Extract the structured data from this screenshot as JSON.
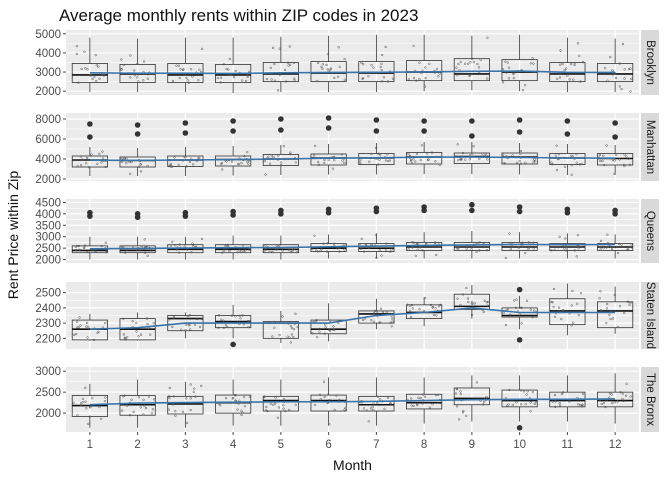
{
  "chart_data": {
    "type": "box",
    "title": "Average monthly rents within ZIP codes in 2023",
    "xlabel": "Month",
    "ylabel": "Rent Price within Zip",
    "x_categories": [
      "1",
      "2",
      "3",
      "4",
      "5",
      "6",
      "7",
      "8",
      "9",
      "10",
      "11",
      "12"
    ],
    "overlays": [
      "jittered points per ZIP code",
      "mean trend line (blue)"
    ],
    "colors": {
      "panel_bg": "#ebebeb",
      "grid": "#ffffff",
      "strip_bg": "#d9d9d9",
      "box": "#333333",
      "trend": "#3a73a8",
      "points": "#555555"
    },
    "facets": [
      {
        "strip": "Brooklyn",
        "yticks": [
          2000,
          3000,
          4000,
          5000
        ],
        "ylim": [
          1800,
          5200
        ],
        "boxes": [
          {
            "q1": 2450,
            "median": 2850,
            "q3": 3450,
            "low": 1950,
            "high": 4800
          },
          {
            "q1": 2450,
            "median": 2900,
            "q3": 3400,
            "low": 1950,
            "high": 4750
          },
          {
            "q1": 2450,
            "median": 2850,
            "q3": 3450,
            "low": 1950,
            "high": 4800
          },
          {
            "q1": 2450,
            "median": 2850,
            "q3": 3400,
            "low": 1900,
            "high": 4800
          },
          {
            "q1": 2500,
            "median": 2900,
            "q3": 3500,
            "low": 1950,
            "high": 4850
          },
          {
            "q1": 2500,
            "median": 2950,
            "q3": 3550,
            "low": 1950,
            "high": 4900
          },
          {
            "q1": 2500,
            "median": 2950,
            "q3": 3550,
            "low": 1950,
            "high": 4950
          },
          {
            "q1": 2550,
            "median": 3000,
            "q3": 3600,
            "low": 2000,
            "high": 4950
          },
          {
            "q1": 2550,
            "median": 2900,
            "q3": 3700,
            "low": 2050,
            "high": 4900
          },
          {
            "q1": 2550,
            "median": 3000,
            "q3": 3650,
            "low": 2000,
            "high": 4950
          },
          {
            "q1": 2500,
            "median": 2900,
            "q3": 3500,
            "low": 1950,
            "high": 4800
          },
          {
            "q1": 2500,
            "median": 2900,
            "q3": 3450,
            "low": 1950,
            "high": 4750
          }
        ],
        "outliers": [
          [],
          [],
          [],
          [],
          [],
          [],
          [],
          [],
          [],
          [],
          [],
          []
        ],
        "trend": [
          2960,
          2940,
          2940,
          2930,
          2960,
          2980,
          2990,
          3010,
          3040,
          3050,
          2990,
          2980
        ]
      },
      {
        "strip": "Manhattan",
        "yticks": [
          2000,
          4000,
          6000,
          8000
        ],
        "ylim": [
          1800,
          8600
        ],
        "boxes": [
          {
            "q1": 3200,
            "median": 3900,
            "q3": 4300,
            "low": 2300,
            "high": 5200
          },
          {
            "q1": 3200,
            "median": 3850,
            "q3": 4200,
            "low": 2300,
            "high": 5100
          },
          {
            "q1": 3250,
            "median": 3900,
            "q3": 4300,
            "low": 2300,
            "high": 5200
          },
          {
            "q1": 3300,
            "median": 3950,
            "q3": 4300,
            "low": 2350,
            "high": 5300
          },
          {
            "q1": 3350,
            "median": 4000,
            "q3": 4450,
            "low": 2400,
            "high": 5400
          },
          {
            "q1": 3400,
            "median": 4100,
            "q3": 4500,
            "low": 2450,
            "high": 5500
          },
          {
            "q1": 3450,
            "median": 4100,
            "q3": 4550,
            "low": 2450,
            "high": 5600
          },
          {
            "q1": 3500,
            "median": 4200,
            "q3": 4650,
            "low": 2500,
            "high": 5700
          },
          {
            "q1": 3550,
            "median": 4250,
            "q3": 4600,
            "low": 2500,
            "high": 5700
          },
          {
            "q1": 3500,
            "median": 4200,
            "q3": 4600,
            "low": 2450,
            "high": 5600
          },
          {
            "q1": 3450,
            "median": 4100,
            "q3": 4550,
            "low": 2400,
            "high": 5500
          },
          {
            "q1": 3400,
            "median": 4050,
            "q3": 4550,
            "low": 2400,
            "high": 5400
          }
        ],
        "outliers": [
          [
            6200,
            7500
          ],
          [
            6500,
            7400
          ],
          [
            6600,
            7600
          ],
          [
            6800,
            7800
          ],
          [
            6900,
            8000
          ],
          [
            7100,
            8100
          ],
          [
            6800,
            7900
          ],
          [
            6800,
            7800
          ],
          [
            6300,
            7800
          ],
          [
            6700,
            7900
          ],
          [
            6500,
            7800
          ],
          [
            6200,
            7600
          ]
        ],
        "trend": [
          3880,
          3870,
          3900,
          3950,
          4000,
          4080,
          4120,
          4180,
          4200,
          4150,
          4100,
          4080
        ]
      },
      {
        "strip": "Queens",
        "yticks": [
          2000,
          2500,
          3000,
          3500,
          4000,
          4500
        ],
        "ylim": [
          1850,
          4650
        ],
        "boxes": [
          {
            "q1": 2300,
            "median": 2400,
            "q3": 2600,
            "low": 2000,
            "high": 3000
          },
          {
            "q1": 2300,
            "median": 2400,
            "q3": 2600,
            "low": 2000,
            "high": 3000
          },
          {
            "q1": 2300,
            "median": 2450,
            "q3": 2650,
            "low": 2000,
            "high": 3000
          },
          {
            "q1": 2300,
            "median": 2450,
            "q3": 2650,
            "low": 2000,
            "high": 3050
          },
          {
            "q1": 2300,
            "median": 2450,
            "q3": 2650,
            "low": 2000,
            "high": 3050
          },
          {
            "q1": 2350,
            "median": 2500,
            "q3": 2700,
            "low": 2050,
            "high": 3100
          },
          {
            "q1": 2350,
            "median": 2500,
            "q3": 2700,
            "low": 2050,
            "high": 3150
          },
          {
            "q1": 2400,
            "median": 2550,
            "q3": 2750,
            "low": 2050,
            "high": 3200
          },
          {
            "q1": 2400,
            "median": 2550,
            "q3": 2750,
            "low": 2050,
            "high": 3250
          },
          {
            "q1": 2400,
            "median": 2550,
            "q3": 2750,
            "low": 2050,
            "high": 3200
          },
          {
            "q1": 2400,
            "median": 2550,
            "q3": 2700,
            "low": 2050,
            "high": 3150
          },
          {
            "q1": 2400,
            "median": 2550,
            "q3": 2700,
            "low": 2050,
            "high": 3100
          }
        ],
        "outliers": [
          [
            3900,
            4050
          ],
          [
            3850,
            4000
          ],
          [
            3900,
            4050
          ],
          [
            3950,
            4100
          ],
          [
            4000,
            4150
          ],
          [
            4050,
            4200
          ],
          [
            4100,
            4250
          ],
          [
            4150,
            4300
          ],
          [
            4150,
            4400
          ],
          [
            4100,
            4300
          ],
          [
            4050,
            4200
          ],
          [
            4000,
            4150
          ]
        ],
        "trend": [
          2470,
          2490,
          2500,
          2520,
          2530,
          2560,
          2590,
          2620,
          2640,
          2660,
          2650,
          2660
        ]
      },
      {
        "strip": "Staten Island",
        "yticks": [
          2200,
          2300,
          2400,
          2500
        ],
        "ylim": [
          2130,
          2570
        ],
        "boxes": [
          {
            "q1": 2190,
            "median": 2260,
            "q3": 2320,
            "low": 2185,
            "high": 2360
          },
          {
            "q1": 2190,
            "median": 2260,
            "q3": 2330,
            "low": 2185,
            "high": 2370
          },
          {
            "q1": 2250,
            "median": 2330,
            "q3": 2350,
            "low": 2200,
            "high": 2370
          },
          {
            "q1": 2270,
            "median": 2310,
            "q3": 2350,
            "low": 2200,
            "high": 2420
          },
          {
            "q1": 2200,
            "median": 2300,
            "q3": 2310,
            "low": 2170,
            "high": 2380
          },
          {
            "q1": 2230,
            "median": 2260,
            "q3": 2320,
            "low": 2180,
            "high": 2430
          },
          {
            "q1": 2300,
            "median": 2360,
            "q3": 2380,
            "low": 2260,
            "high": 2460
          },
          {
            "q1": 2330,
            "median": 2370,
            "q3": 2420,
            "low": 2280,
            "high": 2470
          },
          {
            "q1": 2390,
            "median": 2410,
            "q3": 2490,
            "low": 2330,
            "high": 2550
          },
          {
            "q1": 2340,
            "median": 2350,
            "q3": 2400,
            "low": 2260,
            "high": 2480
          },
          {
            "q1": 2290,
            "median": 2380,
            "q3": 2460,
            "low": 2220,
            "high": 2560
          },
          {
            "q1": 2270,
            "median": 2380,
            "q3": 2440,
            "low": 2230,
            "high": 2540
          }
        ],
        "outliers": [
          [],
          [],
          [],
          [
            2160
          ],
          [],
          [],
          [],
          [],
          [],
          [
            2520,
            2190
          ],
          [],
          []
        ],
        "trend": [
          2260,
          2270,
          2300,
          2300,
          2300,
          2300,
          2350,
          2370,
          2400,
          2370,
          2370,
          2370
        ]
      },
      {
        "strip": "The Bronx",
        "yticks": [
          2000,
          2500,
          3000
        ],
        "ylim": [
          1550,
          3100
        ],
        "boxes": [
          {
            "q1": 1920,
            "median": 2180,
            "q3": 2420,
            "low": 1650,
            "high": 2700
          },
          {
            "q1": 1950,
            "median": 2200,
            "q3": 2420,
            "low": 1650,
            "high": 2800
          },
          {
            "q1": 1980,
            "median": 2220,
            "q3": 2400,
            "low": 1650,
            "high": 2750
          },
          {
            "q1": 2000,
            "median": 2250,
            "q3": 2430,
            "low": 1700,
            "high": 2800
          },
          {
            "q1": 2050,
            "median": 2300,
            "q3": 2400,
            "low": 1700,
            "high": 2800
          },
          {
            "q1": 2050,
            "median": 2300,
            "q3": 2430,
            "low": 1700,
            "high": 2850
          },
          {
            "q1": 2050,
            "median": 2200,
            "q3": 2400,
            "low": 1700,
            "high": 2850
          },
          {
            "q1": 2100,
            "median": 2250,
            "q3": 2450,
            "low": 1750,
            "high": 2850
          },
          {
            "q1": 2200,
            "median": 2350,
            "q3": 2600,
            "low": 1800,
            "high": 2900
          },
          {
            "q1": 2150,
            "median": 2300,
            "q3": 2550,
            "low": 1800,
            "high": 2900
          },
          {
            "q1": 2150,
            "median": 2300,
            "q3": 2500,
            "low": 1800,
            "high": 2900
          },
          {
            "q1": 2150,
            "median": 2300,
            "q3": 2500,
            "low": 1750,
            "high": 2950
          }
        ],
        "outliers": [
          [],
          [],
          [],
          [],
          [],
          [],
          [],
          [],
          [],
          [
            1650
          ],
          [],
          []
        ],
        "trend": [
          2200,
          2240,
          2250,
          2260,
          2270,
          2270,
          2280,
          2300,
          2320,
          2330,
          2330,
          2340
        ]
      }
    ]
  }
}
